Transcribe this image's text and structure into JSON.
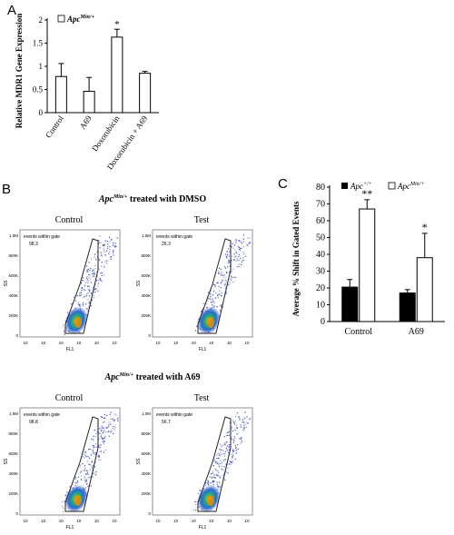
{
  "panels": {
    "A": {
      "letter": "A",
      "legend": {
        "main": "Apc",
        "sup": "Min/+"
      },
      "ylabel": "Relative MDR1 Gene Expression",
      "yticks": [
        "0",
        "0.5",
        "1",
        "1.5",
        "2"
      ],
      "sig_marker": "*"
    },
    "B": {
      "letter": "B",
      "title_dmso": {
        "main": "Apc",
        "sup": "Min/+",
        "rest": " treated with DMSO"
      },
      "title_a69": {
        "main": "Apc",
        "sup": "Min/+",
        "rest": " treated with A69"
      },
      "plot_labels": {
        "control": "Control",
        "test": "Test"
      },
      "gate_label": "events within gate",
      "values": {
        "dmso_control": "98.3",
        "dmso_test": "26.3",
        "a69_control": "98.8",
        "a69_test": "56.7"
      },
      "axis": {
        "x": "FL1",
        "y": "SS"
      },
      "y_ticks": [
        "1.0M",
        "800K",
        "600K",
        "400K",
        "200K",
        "0"
      ],
      "x_ticks": [
        "10",
        "10",
        "10",
        "10",
        "10",
        "10"
      ]
    },
    "C": {
      "letter": "C",
      "legend": [
        {
          "main": "Apc",
          "sup": "+/+"
        },
        {
          "main": "Apc",
          "sup": "Min/+"
        }
      ],
      "ylabel": "Average % Shift in Gated Events",
      "yticks": [
        "0",
        "10",
        "20",
        "30",
        "40",
        "50",
        "60",
        "70",
        "80"
      ],
      "markers": {
        "control": "**",
        "a69": "*"
      }
    }
  },
  "chart_data": [
    {
      "type": "bar",
      "panel": "A",
      "categories": [
        "Control",
        "A69",
        "Doxorubicin",
        "Doxorubicin + A69"
      ],
      "series": [
        {
          "name": "ApcMin/+",
          "values": [
            0.78,
            0.46,
            1.63,
            0.85
          ],
          "errors": [
            0.28,
            0.3,
            0.17,
            0.04
          ]
        }
      ],
      "ylim": [
        0,
        2
      ],
      "ylabel": "Relative MDR1 Gene Expression"
    },
    {
      "type": "bar",
      "panel": "C",
      "categories": [
        "Control",
        "A69"
      ],
      "series": [
        {
          "name": "Apc+/+",
          "values": [
            20.5,
            17.0
          ],
          "errors": [
            4.5,
            2.0
          ],
          "color": "#000000"
        },
        {
          "name": "ApcMin/+",
          "values": [
            67.0,
            38.0
          ],
          "errors": [
            5.5,
            14.5
          ],
          "color": "#ffffff"
        }
      ],
      "ylim": [
        0,
        80
      ],
      "ylabel": "Average % Shift in Gated Events"
    }
  ]
}
